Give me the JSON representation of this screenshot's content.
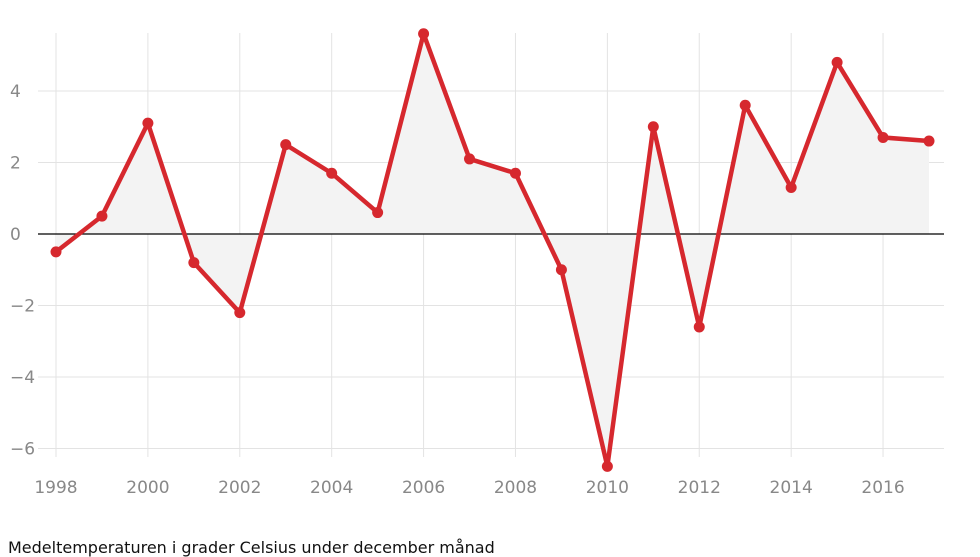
{
  "caption": "Medeltemperaturen i grader Celsius under december månad",
  "chart_data": {
    "type": "line",
    "title": "",
    "xlabel": "",
    "ylabel": "",
    "x": [
      1998,
      1999,
      2000,
      2001,
      2002,
      2003,
      2004,
      2005,
      2006,
      2007,
      2008,
      2009,
      2010,
      2011,
      2012,
      2013,
      2014,
      2015,
      2016,
      2017
    ],
    "series": [
      {
        "values": [
          -0.5,
          0.5,
          3.1,
          -0.8,
          -2.2,
          2.5,
          1.7,
          0.6,
          5.6,
          2.1,
          1.7,
          -1.0,
          -6.5,
          3.0,
          -2.6,
          3.6,
          1.3,
          4.8,
          2.7,
          2.6
        ]
      }
    ],
    "x_ticks": [
      "1998",
      "2000",
      "2002",
      "2004",
      "2006",
      "2008",
      "2010",
      "2012",
      "2014",
      "2016"
    ],
    "y_ticks": [
      "4",
      "2",
      "0",
      "−2",
      "−4",
      "−6"
    ],
    "y_tick_values": [
      4,
      2,
      0,
      -2,
      -4,
      -6
    ],
    "xlim": [
      1998,
      2017
    ],
    "ylim": [
      -6.6,
      5.7
    ],
    "grid": true,
    "zero_line": true,
    "colors": {
      "line": "#d6282e",
      "area": "#f3f3f3",
      "grid": "#e3e3e3",
      "zero": "#000000",
      "tick_text": "#888888"
    }
  }
}
